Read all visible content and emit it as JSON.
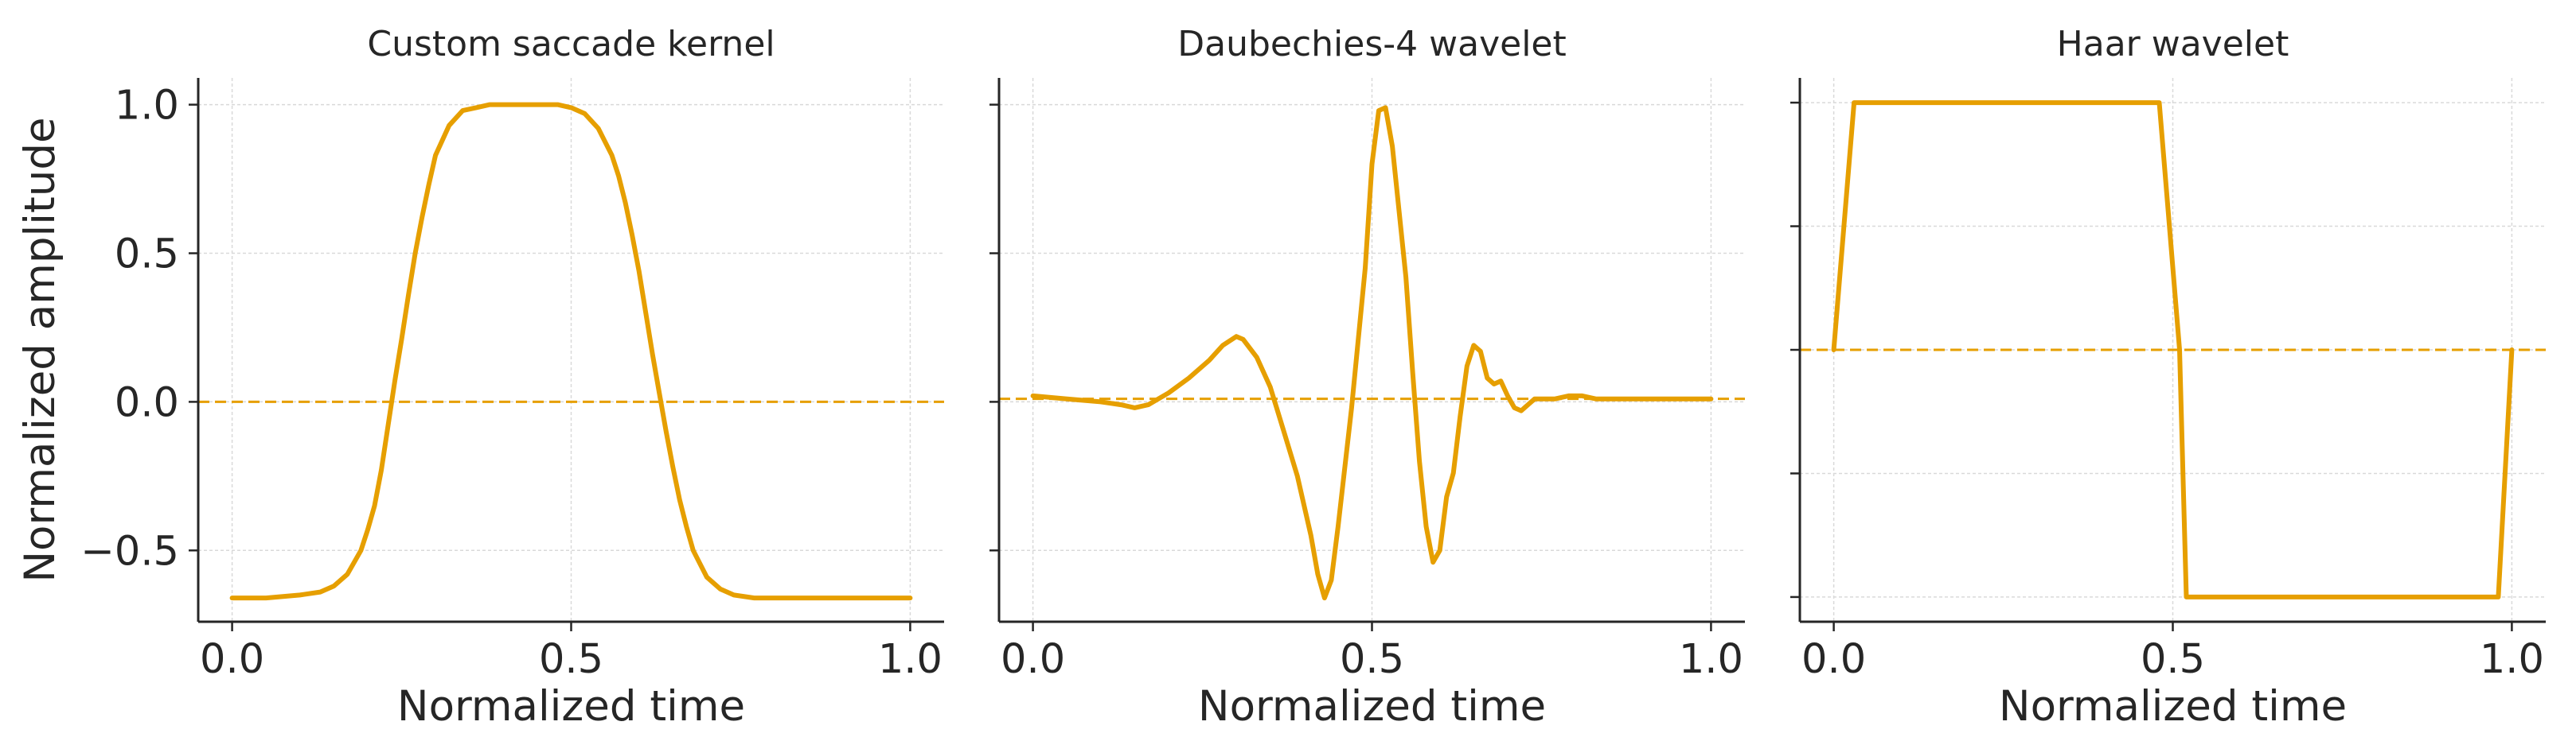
{
  "figure": {
    "shared_ylabel": "Normalized amplitude",
    "line_color": "#E69F00",
    "grid_color": "#d9d9d9",
    "axis_color": "#262626"
  },
  "chart_data": [
    {
      "type": "line",
      "title": "Custom saccade kernel",
      "xlabel": "Normalized time",
      "ylabel": "Normalized amplitude",
      "xlim": [
        -0.05,
        1.05
      ],
      "ylim": [
        -0.74,
        1.09
      ],
      "xticks": [
        0.0,
        0.5,
        1.0
      ],
      "xtick_labels": [
        "0.0",
        "0.5",
        "1.0"
      ],
      "yticks": [
        -0.5,
        0.0,
        0.5,
        1.0
      ],
      "ytick_labels": [
        "−0.5",
        "0.0",
        "0.5",
        "1.0"
      ],
      "show_ytick_labels": true,
      "grid": true,
      "baseline": 0.0,
      "series": [
        {
          "x": [
            0.0,
            0.05,
            0.1,
            0.13,
            0.15,
            0.17,
            0.19,
            0.2,
            0.21,
            0.22,
            0.23,
            0.24,
            0.25,
            0.26,
            0.27,
            0.28,
            0.29,
            0.3,
            0.32,
            0.34,
            0.36,
            0.38,
            0.4,
            0.43,
            0.46,
            0.48,
            0.5,
            0.52,
            0.54,
            0.56,
            0.57,
            0.58,
            0.59,
            0.6,
            0.61,
            0.62,
            0.63,
            0.64,
            0.65,
            0.66,
            0.67,
            0.68,
            0.7,
            0.72,
            0.74,
            0.77,
            0.8,
            0.9,
            1.0
          ],
          "y": [
            -0.66,
            -0.66,
            -0.65,
            -0.64,
            -0.62,
            -0.58,
            -0.5,
            -0.43,
            -0.35,
            -0.23,
            -0.08,
            0.07,
            0.21,
            0.36,
            0.5,
            0.62,
            0.73,
            0.83,
            0.93,
            0.98,
            0.99,
            1.0,
            1.0,
            1.0,
            1.0,
            1.0,
            0.99,
            0.97,
            0.92,
            0.83,
            0.76,
            0.67,
            0.56,
            0.44,
            0.3,
            0.16,
            0.03,
            -0.1,
            -0.22,
            -0.33,
            -0.42,
            -0.5,
            -0.59,
            -0.63,
            -0.65,
            -0.66,
            -0.66,
            -0.66,
            -0.66
          ]
        }
      ]
    },
    {
      "type": "line",
      "title": "Daubechies-4 wavelet",
      "xlabel": "Normalized time",
      "xlim": [
        -0.05,
        1.05
      ],
      "ylim": [
        -0.74,
        1.09
      ],
      "xticks": [
        0.0,
        0.5,
        1.0
      ],
      "xtick_labels": [
        "0.0",
        "0.5",
        "1.0"
      ],
      "yticks": [
        -0.5,
        0.0,
        0.5,
        1.0
      ],
      "show_ytick_labels": false,
      "grid": true,
      "baseline": 0.01,
      "series": [
        {
          "x": [
            0.0,
            0.05,
            0.1,
            0.13,
            0.15,
            0.17,
            0.2,
            0.23,
            0.26,
            0.28,
            0.3,
            0.31,
            0.33,
            0.35,
            0.37,
            0.39,
            0.41,
            0.42,
            0.43,
            0.44,
            0.45,
            0.47,
            0.49,
            0.5,
            0.51,
            0.52,
            0.53,
            0.54,
            0.55,
            0.56,
            0.57,
            0.58,
            0.59,
            0.6,
            0.61,
            0.62,
            0.63,
            0.64,
            0.65,
            0.66,
            0.67,
            0.68,
            0.69,
            0.7,
            0.71,
            0.72,
            0.73,
            0.74,
            0.75,
            0.77,
            0.79,
            0.81,
            0.83,
            0.86,
            0.9,
            1.0
          ],
          "y": [
            0.02,
            0.01,
            0.0,
            -0.01,
            -0.02,
            -0.01,
            0.03,
            0.08,
            0.14,
            0.19,
            0.22,
            0.21,
            0.15,
            0.05,
            -0.1,
            -0.25,
            -0.45,
            -0.58,
            -0.66,
            -0.6,
            -0.42,
            -0.02,
            0.45,
            0.8,
            0.98,
            0.99,
            0.86,
            0.64,
            0.42,
            0.1,
            -0.2,
            -0.42,
            -0.54,
            -0.5,
            -0.32,
            -0.24,
            -0.05,
            0.12,
            0.19,
            0.17,
            0.08,
            0.06,
            0.07,
            0.02,
            -0.02,
            -0.03,
            -0.01,
            0.01,
            0.01,
            0.01,
            0.02,
            0.02,
            0.01,
            0.01,
            0.01,
            0.01
          ]
        }
      ]
    },
    {
      "type": "line",
      "title": "Haar wavelet",
      "xlabel": "Normalized time",
      "xlim": [
        -0.05,
        1.05
      ],
      "ylim": [
        -1.1,
        1.1
      ],
      "xticks": [
        0.0,
        0.5,
        1.0
      ],
      "xtick_labels": [
        "0.0",
        "0.5",
        "1.0"
      ],
      "yticks": [
        -1.0,
        -0.5,
        0.0,
        0.5,
        1.0
      ],
      "show_ytick_labels": false,
      "grid": true,
      "baseline": 0.0,
      "series": [
        {
          "x": [
            0.0,
            0.03,
            0.48,
            0.51,
            0.52,
            0.98,
            1.0
          ],
          "y": [
            0.0,
            1.0,
            1.0,
            0.0,
            -1.0,
            -1.0,
            0.0
          ]
        }
      ]
    }
  ]
}
